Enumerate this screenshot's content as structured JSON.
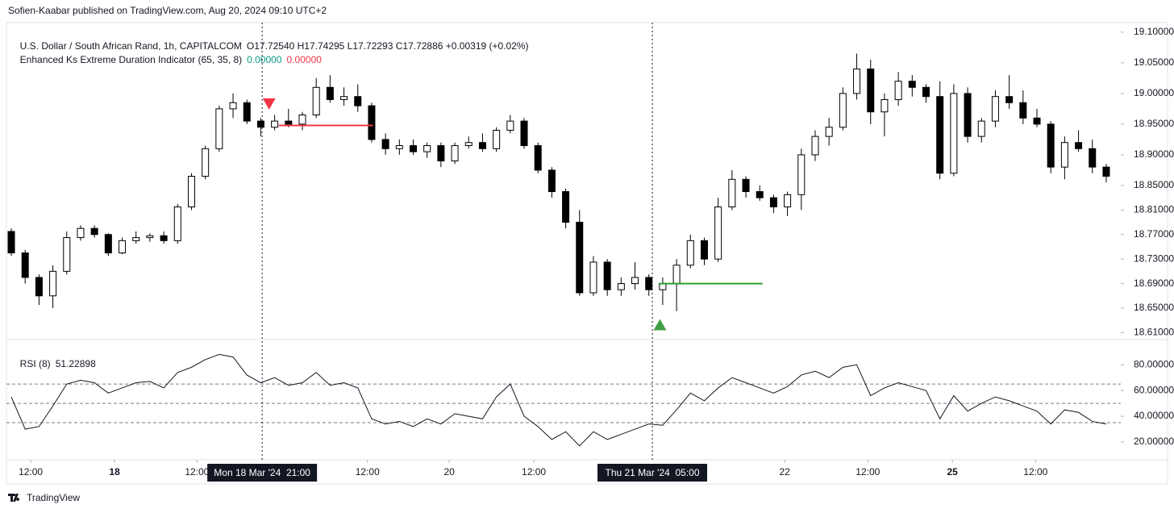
{
  "attribution": "Sofien-Kaabar published on TradingView.com, Aug 20, 2024 09:10 UTC+2",
  "footer": "TradingView",
  "chart_data": [
    {
      "type": "candlestick",
      "title": "U.S. Dollar / South African Rand, 1h, CAPITALCOM",
      "subtitle": "O17.72540 H17.74295 L17.72293 C17.72886 +0.00319 (+0.02%)",
      "indicator": {
        "name": "Enhanced Ks Extreme Duration Indicator (65, 35, 8)",
        "values": [
          0,
          0
        ],
        "value_labels": [
          "0.00000",
          "0.00000"
        ],
        "colors": [
          "#089981",
          "#f23645"
        ]
      },
      "up_color": "#ffffff",
      "down_color": "#000000",
      "border_color": "#000000",
      "xlim": [
        -0.35,
        80.05
      ],
      "ylim": [
        18.6,
        19.113
      ],
      "yticks": [
        {
          "value": 19.1,
          "label": "19.10000"
        },
        {
          "value": 19.05,
          "label": "19.05000"
        },
        {
          "value": 19.0,
          "label": "19.00000"
        },
        {
          "value": 18.95,
          "label": "18.95000"
        },
        {
          "value": 18.9,
          "label": "18.90000"
        },
        {
          "value": 18.85,
          "label": "18.85000"
        },
        {
          "value": 18.81,
          "label": "18.81000"
        },
        {
          "value": 18.77,
          "label": "18.77000"
        },
        {
          "value": 18.73,
          "label": "18.73000"
        },
        {
          "value": 18.69,
          "label": "18.69000"
        },
        {
          "value": 18.65,
          "label": "18.65000"
        },
        {
          "value": 18.61,
          "label": "18.61000"
        }
      ],
      "open": [
        18.775,
        18.74,
        18.7,
        18.67,
        18.71,
        18.765,
        18.78,
        18.77,
        18.74,
        18.76,
        18.765,
        18.768,
        18.76,
        18.815,
        18.865,
        18.91,
        18.975,
        18.985,
        18.955,
        18.945,
        18.955,
        18.95,
        18.965,
        19.01,
        18.99,
        18.995,
        18.98,
        18.925,
        18.91,
        18.915,
        18.905,
        18.915,
        18.89,
        18.915,
        18.92,
        18.91,
        18.94,
        18.955,
        18.915,
        18.875,
        18.84,
        18.79,
        18.675,
        18.725,
        18.68,
        18.69,
        18.7,
        18.68,
        18.69,
        18.72,
        18.76,
        18.73,
        18.815,
        18.86,
        18.84,
        18.83,
        18.815,
        18.835,
        18.9,
        18.93,
        18.945,
        19.0,
        19.04,
        18.97,
        18.99,
        19.02,
        19.01,
        18.995,
        18.87,
        19.0,
        18.93,
        18.955,
        18.995,
        18.985,
        18.96,
        18.95,
        18.88,
        18.92,
        18.91,
        18.88
      ],
      "high": [
        18.78,
        18.745,
        18.705,
        18.72,
        18.775,
        18.785,
        18.785,
        18.772,
        18.765,
        18.775,
        18.772,
        18.775,
        18.82,
        18.87,
        18.915,
        18.98,
        19.0,
        18.99,
        18.96,
        18.965,
        18.975,
        18.97,
        19.025,
        19.03,
        19.01,
        19.015,
        18.985,
        18.935,
        18.925,
        18.925,
        18.92,
        18.92,
        18.92,
        18.93,
        18.935,
        18.945,
        18.965,
        18.96,
        18.92,
        18.88,
        18.845,
        18.81,
        18.735,
        18.73,
        18.7,
        18.725,
        18.705,
        18.7,
        18.73,
        18.77,
        18.765,
        18.83,
        18.875,
        18.865,
        18.85,
        18.835,
        18.84,
        18.91,
        18.94,
        18.96,
        19.01,
        19.065,
        19.055,
        19.0,
        19.035,
        19.03,
        19.015,
        19.02,
        19.015,
        19.01,
        18.96,
        19.005,
        19.03,
        19.005,
        18.975,
        18.955,
        18.93,
        18.94,
        18.925,
        18.885
      ],
      "low": [
        18.735,
        18.69,
        18.655,
        18.65,
        18.705,
        18.76,
        18.765,
        18.735,
        18.738,
        18.755,
        18.758,
        18.755,
        18.755,
        18.81,
        18.86,
        18.905,
        18.96,
        18.95,
        18.93,
        18.94,
        18.945,
        18.94,
        18.96,
        18.985,
        18.98,
        18.97,
        18.92,
        18.9,
        18.9,
        18.9,
        18.895,
        18.88,
        18.885,
        18.91,
        18.905,
        18.905,
        18.935,
        18.91,
        18.87,
        18.83,
        18.78,
        18.67,
        18.67,
        18.67,
        18.67,
        18.68,
        18.67,
        18.655,
        18.645,
        18.715,
        18.72,
        18.725,
        18.81,
        18.83,
        18.825,
        18.805,
        18.8,
        18.81,
        18.89,
        18.915,
        18.94,
        18.99,
        18.95,
        18.93,
        18.98,
        18.995,
        18.985,
        18.86,
        18.865,
        18.92,
        18.92,
        18.945,
        18.975,
        18.95,
        18.945,
        18.87,
        18.86,
        18.905,
        18.87,
        18.855
      ],
      "close": [
        18.74,
        18.7,
        18.67,
        18.71,
        18.765,
        18.78,
        18.77,
        18.74,
        18.76,
        18.765,
        18.768,
        18.76,
        18.815,
        18.865,
        18.91,
        18.975,
        18.985,
        18.955,
        18.945,
        18.955,
        18.95,
        18.965,
        19.01,
        18.99,
        18.995,
        18.98,
        18.925,
        18.91,
        18.915,
        18.905,
        18.915,
        18.89,
        18.915,
        18.92,
        18.91,
        18.94,
        18.955,
        18.915,
        18.875,
        18.84,
        18.79,
        18.675,
        18.725,
        18.68,
        18.69,
        18.7,
        18.68,
        18.69,
        18.72,
        18.76,
        18.73,
        18.815,
        18.86,
        18.84,
        18.83,
        18.815,
        18.835,
        18.9,
        18.93,
        18.945,
        19.0,
        19.04,
        18.97,
        18.99,
        19.02,
        19.01,
        18.995,
        18.87,
        19.0,
        18.93,
        18.955,
        18.995,
        18.985,
        18.96,
        18.95,
        18.88,
        18.92,
        18.91,
        18.88,
        18.865
      ],
      "signals": [
        {
          "x": 18.6,
          "y": 18.983,
          "direction": "down",
          "color": "#f23645"
        },
        {
          "x": 46.8,
          "y": 18.623,
          "direction": "up",
          "color": "#43a047"
        }
      ],
      "segments": [
        {
          "x": [
            19.3,
            26.1
          ],
          "y": 18.948,
          "color": "#f23645"
        },
        {
          "x": [
            46.7,
            54.2
          ],
          "y": 18.69,
          "color": "#2e9e2e"
        }
      ],
      "crosshairs": [
        {
          "x": 18.1,
          "label": "Mon 18 Mar '24  21:00"
        },
        {
          "x": 46.25,
          "label": "Thu 21 Mar '24  05:00"
        }
      ]
    },
    {
      "type": "line",
      "title": "RSI (8)",
      "last_value": 51.22898,
      "color": "#131722",
      "xlim": [
        -0.35,
        80.05
      ],
      "ylim": [
        7.5,
        97
      ],
      "yticks": [
        {
          "value": 80,
          "label": "80.00000"
        },
        {
          "value": 60,
          "label": "60.00000"
        },
        {
          "value": 40,
          "label": "40.00000"
        },
        {
          "value": 20,
          "label": "20.00000"
        }
      ],
      "levels": [
        65,
        50,
        35
      ],
      "xticks": [
        {
          "value": 1.4,
          "label": "12:00"
        },
        {
          "value": 7.45,
          "label": "18",
          "bold": true
        },
        {
          "value": 13.4,
          "label": "12:00"
        },
        {
          "value": 25.7,
          "label": "12:00"
        },
        {
          "value": 31.6,
          "label": "20"
        },
        {
          "value": 37.7,
          "label": "12:00"
        },
        {
          "value": 55.8,
          "label": "22"
        },
        {
          "value": 61.8,
          "label": "12:00"
        },
        {
          "value": 67.9,
          "label": "25",
          "bold": true
        },
        {
          "value": 73.9,
          "label": "12:00"
        }
      ],
      "values": [
        55,
        30,
        32,
        48,
        65,
        68,
        66,
        58,
        62,
        66,
        67,
        62,
        74,
        78,
        84,
        88,
        86,
        72,
        66,
        70,
        64,
        66,
        74,
        64,
        66,
        62,
        38,
        34,
        36,
        32,
        38,
        34,
        42,
        40,
        38,
        55,
        65,
        40,
        32,
        22,
        28,
        17,
        28,
        22,
        26,
        30,
        34,
        33,
        45,
        58,
        52,
        62,
        70,
        66,
        62,
        58,
        63,
        72,
        75,
        70,
        78,
        80,
        56,
        62,
        66,
        63,
        60,
        38,
        56,
        44,
        50,
        55,
        52,
        48,
        44,
        34,
        45,
        43,
        36,
        34
      ]
    }
  ]
}
